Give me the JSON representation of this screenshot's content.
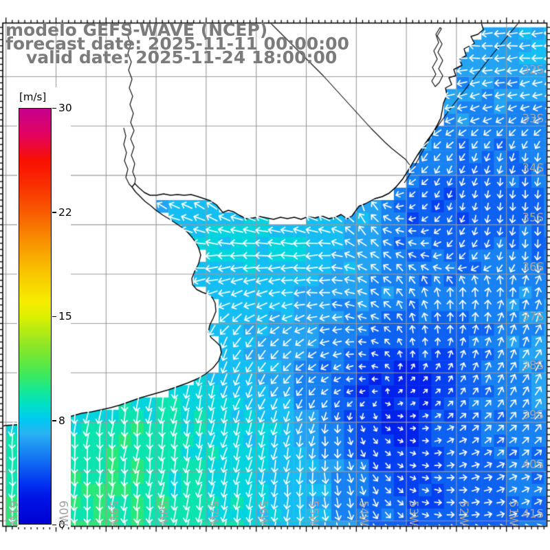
{
  "title": {
    "line1": "modelo GEFS-WAVE (NCEP)",
    "line2": "forecast date: 2025-11-11 00:00:00",
    "line3": "valid date: 2025-11-24 18:00:00",
    "color": "#7b7b7b"
  },
  "colorbar": {
    "unit_label": "[m/s]",
    "tick_labels": [
      "30",
      "22",
      "15",
      "8",
      "0"
    ],
    "tick_values": [
      30,
      22,
      15,
      8,
      0
    ],
    "stops": [
      [
        0,
        "#0000d2"
      ],
      [
        2,
        "#0014e6"
      ],
      [
        3,
        "#0030f0"
      ],
      [
        4,
        "#0a52f2"
      ],
      [
        5,
        "#1272f2"
      ],
      [
        6,
        "#1e92f2"
      ],
      [
        7,
        "#2ab4f2"
      ],
      [
        8,
        "#00c8f2"
      ],
      [
        9,
        "#00dfc8"
      ],
      [
        10,
        "#16e896"
      ],
      [
        11,
        "#3ce85e"
      ],
      [
        12,
        "#66e83c"
      ],
      [
        13,
        "#8ee626"
      ],
      [
        15,
        "#dcf000"
      ],
      [
        16,
        "#f6ec00"
      ],
      [
        18,
        "#f8c400"
      ],
      [
        20,
        "#f89200"
      ],
      [
        22,
        "#f85c00"
      ],
      [
        24,
        "#f83000"
      ],
      [
        26,
        "#f81000"
      ],
      [
        28,
        "#e20260"
      ],
      [
        30,
        "#c6008e"
      ]
    ],
    "value_anchors": [
      0,
      8,
      15,
      22,
      30
    ]
  },
  "axes": {
    "lat_labels": [
      "32S",
      "33S",
      "34S",
      "35S",
      "36S",
      "37S",
      "38S",
      "39S",
      "40S",
      "41S"
    ],
    "lon_labels": [
      "61W",
      "60W",
      "59W",
      "58W",
      "57W",
      "56W",
      "55W",
      "54W",
      "53W",
      "52W",
      "51W"
    ],
    "label_color": "#a3a3a3"
  },
  "colors": {
    "grid": "#9a9a9a",
    "coast": "#000000",
    "frame": "#000000",
    "arrow": "#ffffff",
    "land": "#ffffff"
  },
  "chart_data": {
    "type": "vector_field_map",
    "units": "m/s",
    "speed_range": [
      0,
      30
    ],
    "layout": {
      "frame": [
        4,
        33.5,
        795.5,
        765.5
      ],
      "lon_x0": 8.7,
      "lon_dx": 72.8,
      "lat_y0": 111.5,
      "lat_dy": 71.8,
      "cell_w": 18.2,
      "cell_h": 17.95,
      "minor_ticks_per_degree": 8
    },
    "field": {
      "cols": 13,
      "rows": 12,
      "x_range": [
        2,
        795
      ],
      "y_range": [
        30,
        765
      ],
      "speed": [
        [
          6,
          6,
          6,
          6,
          6,
          6,
          6,
          6,
          6.5,
          6.5,
          6.8,
          6.8,
          7.2
        ],
        [
          6,
          6,
          6,
          6,
          6,
          6,
          6,
          6,
          6.5,
          7,
          6.5,
          6.5,
          6.8
        ],
        [
          6,
          6,
          6,
          6,
          6,
          6,
          6,
          6.5,
          6.5,
          6.5,
          6,
          5.5,
          5.5
        ],
        [
          6,
          6,
          6,
          6,
          6.5,
          6.5,
          6.5,
          7,
          7.5,
          6,
          5,
          4.8,
          5
        ],
        [
          7,
          7,
          7,
          7,
          7.2,
          7.8,
          7.8,
          7.8,
          7,
          3.8,
          4.2,
          4.5,
          5
        ],
        [
          7,
          7,
          7,
          7.5,
          7.8,
          8.3,
          8.3,
          7.8,
          6.5,
          5,
          4.8,
          4.8,
          5
        ],
        [
          7,
          7,
          7,
          7.2,
          7.5,
          7.5,
          7,
          6.5,
          6,
          5.5,
          5.5,
          5.5,
          6
        ],
        [
          8,
          8,
          8,
          8,
          8,
          7.5,
          6.5,
          6,
          4.5,
          4,
          4.5,
          5.5,
          6.5
        ],
        [
          8.5,
          8.5,
          8.5,
          8.5,
          8.5,
          8,
          7,
          5,
          3,
          2.5,
          4,
          5.5,
          6.5
        ],
        [
          9.5,
          9,
          9.5,
          10,
          9.5,
          8.5,
          8,
          6,
          3.5,
          3,
          4.5,
          5,
          5.5
        ],
        [
          10,
          9.5,
          10,
          10,
          9,
          8.5,
          8,
          7,
          5,
          3.5,
          4.5,
          5,
          5
        ],
        [
          10.5,
          10,
          10.5,
          10,
          9.5,
          9,
          8,
          7,
          5.5,
          4,
          4.5,
          4.5,
          5
        ]
      ],
      "dir_deg": [
        [
          270,
          270,
          270,
          270,
          270,
          270,
          270,
          270,
          270,
          270,
          270,
          268,
          268
        ],
        [
          270,
          270,
          270,
          270,
          270,
          270,
          270,
          270,
          268,
          268,
          266,
          264,
          262
        ],
        [
          268,
          268,
          268,
          268,
          266,
          266,
          264,
          262,
          260,
          256,
          252,
          250,
          248
        ],
        [
          280,
          282,
          284,
          286,
          288,
          288,
          284,
          270,
          240,
          225,
          210,
          195,
          188
        ],
        [
          288,
          292,
          295,
          298,
          300,
          300,
          298,
          300,
          340,
          240,
          192,
          186,
          182
        ],
        [
          278,
          278,
          278,
          276,
          274,
          272,
          270,
          268,
          305,
          300,
          220,
          200,
          185
        ],
        [
          255,
          255,
          254,
          252,
          250,
          252,
          258,
          268,
          295,
          335,
          0,
          10,
          15
        ],
        [
          200,
          200,
          198,
          196,
          194,
          210,
          228,
          245,
          280,
          345,
          10,
          20,
          28
        ],
        [
          190,
          190,
          190,
          188,
          188,
          198,
          210,
          228,
          260,
          60,
          35,
          32,
          35
        ],
        [
          185,
          185,
          186,
          188,
          192,
          197,
          196,
          190,
          155,
          100,
          60,
          48,
          45
        ],
        [
          182,
          184,
          185,
          188,
          190,
          193,
          190,
          180,
          160,
          112,
          82,
          68,
          60
        ],
        [
          180,
          182,
          184,
          186,
          189,
          190,
          186,
          176,
          160,
          122,
          92,
          80,
          70
        ]
      ]
    },
    "geo": {
      "land": [
        [
          4,
          33
        ],
        [
          700,
          33
        ],
        [
          703,
          43
        ],
        [
          695,
          50
        ],
        [
          685,
          53
        ],
        [
          690,
          63
        ],
        [
          675,
          71
        ],
        [
          678,
          81
        ],
        [
          668,
          86
        ],
        [
          672,
          95
        ],
        [
          660,
          101
        ],
        [
          663,
          110
        ],
        [
          653,
          113
        ],
        [
          657,
          123
        ],
        [
          648,
          128
        ],
        [
          650,
          138
        ],
        [
          645,
          150
        ],
        [
          643,
          162
        ],
        [
          641,
          172
        ],
        [
          632,
          190
        ],
        [
          619,
          208
        ],
        [
          607,
          226
        ],
        [
          596,
          244
        ],
        [
          586,
          260
        ],
        [
          576,
          272
        ],
        [
          566,
          281
        ],
        [
          556,
          286
        ],
        [
          545,
          289
        ],
        [
          532,
          296
        ],
        [
          522,
          300
        ],
        [
          512,
          314
        ],
        [
          505,
          318
        ],
        [
          496,
          312
        ],
        [
          488,
          316
        ],
        [
          478,
          318
        ],
        [
          468,
          314
        ],
        [
          458,
          317
        ],
        [
          448,
          315
        ],
        [
          438,
          319
        ],
        [
          428,
          316
        ],
        [
          418,
          318
        ],
        [
          408,
          316
        ],
        [
          398,
          319
        ],
        [
          388,
          317
        ],
        [
          378,
          315
        ],
        [
          368,
          317
        ],
        [
          358,
          318
        ],
        [
          348,
          313
        ],
        [
          340,
          308
        ],
        [
          332,
          306
        ],
        [
          324,
          309
        ],
        [
          315,
          298
        ],
        [
          306,
          292
        ],
        [
          297,
          289
        ],
        [
          288,
          286
        ],
        [
          278,
          283
        ],
        [
          268,
          284
        ],
        [
          258,
          283
        ],
        [
          248,
          284
        ],
        [
          238,
          282
        ],
        [
          228,
          284
        ],
        [
          218,
          284
        ],
        [
          210,
          280
        ],
        [
          202,
          273
        ],
        [
          196,
          267
        ],
        [
          192,
          272
        ],
        [
          197,
          279
        ],
        [
          204,
          286
        ],
        [
          211,
          293
        ],
        [
          219,
          299
        ],
        [
          227,
          306
        ],
        [
          237,
          313
        ],
        [
          247,
          319
        ],
        [
          256,
          325
        ],
        [
          265,
          331
        ],
        [
          273,
          338
        ],
        [
          280,
          346
        ],
        [
          285,
          353
        ],
        [
          289,
          361
        ],
        [
          292,
          371
        ],
        [
          289,
          383
        ],
        [
          283,
          395
        ],
        [
          279,
          405
        ],
        [
          280,
          414
        ],
        [
          286,
          421
        ],
        [
          294,
          425
        ],
        [
          302,
          428
        ],
        [
          309,
          433
        ],
        [
          313,
          441
        ],
        [
          314,
          453
        ],
        [
          310,
          463
        ],
        [
          305,
          473
        ],
        [
          303,
          483
        ],
        [
          307,
          491
        ],
        [
          314,
          497
        ],
        [
          320,
          503
        ],
        [
          322,
          513
        ],
        [
          318,
          525
        ],
        [
          310,
          535
        ],
        [
          299,
          544
        ],
        [
          287,
          551
        ],
        [
          273,
          557
        ],
        [
          259,
          562
        ],
        [
          245,
          567
        ],
        [
          231,
          571
        ],
        [
          217,
          575
        ],
        [
          203,
          579
        ],
        [
          189,
          584
        ],
        [
          175,
          589
        ],
        [
          161,
          593
        ],
        [
          147,
          596
        ],
        [
          133,
          599
        ],
        [
          119,
          601
        ],
        [
          105,
          605
        ],
        [
          91,
          607
        ],
        [
          77,
          610
        ],
        [
          63,
          612
        ],
        [
          49,
          615
        ],
        [
          35,
          617
        ],
        [
          21,
          618
        ],
        [
          7,
          619
        ],
        [
          4,
          620
        ]
      ],
      "lines": [
        [
          [
            757,
            30
          ],
          [
            742,
            48
          ],
          [
            728,
            65
          ],
          [
            714,
            82
          ],
          [
            700,
            100
          ],
          [
            686,
            118
          ],
          [
            672,
            136
          ],
          [
            658,
            154
          ],
          [
            645,
            172
          ],
          [
            632,
            190
          ],
          [
            619,
            208
          ],
          [
            607,
            226
          ],
          [
            596,
            244
          ],
          [
            586,
            260
          ],
          [
            576,
            272
          ],
          [
            566,
            281
          ],
          [
            556,
            286
          ],
          [
            545,
            289
          ]
        ],
        [
          [
            641,
            172
          ],
          [
            636,
            182
          ],
          [
            630,
            192
          ],
          [
            624,
            203
          ],
          [
            618,
            214
          ],
          [
            612,
            225
          ],
          [
            606,
            236
          ],
          [
            600,
            247
          ],
          [
            594,
            257
          ],
          [
            588,
            266
          ]
        ],
        [
          [
            393,
            33
          ],
          [
            404,
            44
          ],
          [
            415,
            55
          ],
          [
            426,
            66
          ],
          [
            437,
            77
          ],
          [
            448,
            88
          ],
          [
            459,
            99
          ],
          [
            470,
            110
          ],
          [
            480,
            121
          ],
          [
            490,
            132
          ],
          [
            500,
            143
          ],
          [
            510,
            154
          ],
          [
            520,
            165
          ],
          [
            530,
            176
          ],
          [
            540,
            187
          ],
          [
            550,
            197
          ],
          [
            560,
            207
          ],
          [
            570,
            216
          ],
          [
            580,
            224
          ],
          [
            590,
            232
          ],
          [
            596,
            240
          ]
        ],
        [
          [
            187,
            33
          ],
          [
            190,
            42
          ],
          [
            186,
            52
          ],
          [
            190,
            65
          ],
          [
            186,
            78
          ],
          [
            191,
            90
          ],
          [
            187,
            102
          ],
          [
            192,
            115
          ],
          [
            188,
            128
          ],
          [
            193,
            140
          ],
          [
            189,
            152
          ],
          [
            194,
            165
          ],
          [
            190,
            178
          ],
          [
            195,
            190
          ],
          [
            190,
            202
          ],
          [
            195,
            214
          ],
          [
            191,
            226
          ],
          [
            196,
            238
          ],
          [
            193,
            250
          ],
          [
            197,
            260
          ],
          [
            196,
            267
          ]
        ],
        [
          [
            180,
            186
          ],
          [
            183,
            198
          ],
          [
            180,
            210
          ],
          [
            184,
            222
          ],
          [
            181,
            234
          ],
          [
            186,
            246
          ],
          [
            183,
            258
          ],
          [
            188,
            268
          ],
          [
            192,
            272
          ]
        ],
        [
          [
            640,
            40
          ],
          [
            634,
            50
          ],
          [
            638,
            62
          ],
          [
            631,
            74
          ],
          [
            636,
            86
          ],
          [
            629,
            98
          ],
          [
            634,
            108
          ],
          [
            628,
            118
          ],
          [
            633,
            126
          ],
          [
            639,
            120
          ],
          [
            644,
            110
          ],
          [
            638,
            100
          ],
          [
            644,
            88
          ],
          [
            637,
            76
          ],
          [
            643,
            64
          ],
          [
            636,
            52
          ],
          [
            642,
            42
          ],
          [
            640,
            40
          ]
        ]
      ]
    }
  }
}
